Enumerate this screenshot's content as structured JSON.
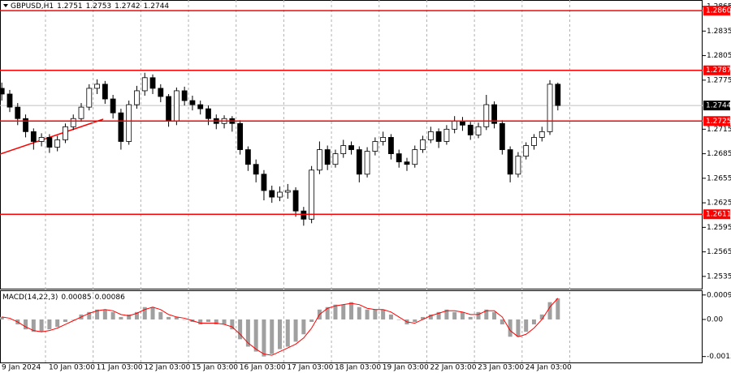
{
  "chart_data": [
    {
      "type": "candlestick",
      "symbol": "GBPUSD,H1",
      "quote": [
        1.2751,
        1.2753,
        1.2742,
        1.2744
      ],
      "categories": [
        "9 Jan 2024",
        null,
        null,
        null,
        null,
        null,
        "10 Jan 03:00",
        null,
        null,
        null,
        null,
        null,
        "11 Jan 03:00",
        null,
        null,
        null,
        null,
        null,
        "12 Jan 03:00",
        null,
        null,
        null,
        null,
        null,
        "15 Jan 03:00",
        null,
        null,
        null,
        null,
        null,
        "16 Jan 03:00",
        null,
        null,
        null,
        null,
        null,
        "17 Jan 03:00",
        null,
        null,
        null,
        null,
        null,
        "18 Jan 03:00",
        null,
        null,
        null,
        null,
        null,
        "19 Jan 03:00",
        null,
        null,
        null,
        null,
        null,
        "22 Jan 03:00",
        null,
        null,
        null,
        null,
        null,
        "23 Jan 03:00",
        null,
        null,
        null,
        null,
        null,
        "24 Jan 03:00",
        null,
        null,
        null,
        null
      ],
      "open": [
        1.2765,
        1.2758,
        1.2742,
        1.2728,
        1.2712,
        1.27,
        1.2705,
        1.2693,
        1.2702,
        1.2718,
        1.2728,
        1.2742,
        1.2765,
        1.277,
        1.2752,
        1.2735,
        1.27,
        1.2745,
        1.2762,
        1.2778,
        1.2765,
        1.2755,
        1.2725,
        1.2762,
        1.275,
        1.2745,
        1.274,
        1.2728,
        1.2722,
        1.2728,
        1.2722,
        1.269,
        1.2672,
        1.266,
        1.264,
        1.2632,
        1.2638,
        1.264,
        1.2615,
        1.2605,
        1.2665,
        1.269,
        1.2672,
        1.2685,
        1.2695,
        1.269,
        1.266,
        1.2688,
        1.27,
        1.2705,
        1.2685,
        1.2675,
        1.2672,
        1.269,
        1.2702,
        1.2712,
        1.27,
        1.2715,
        1.2725,
        1.272,
        1.2708,
        1.2718,
        1.2745,
        1.2722,
        1.269,
        1.266,
        1.2682,
        1.2695,
        1.2705,
        1.2712,
        1.277
      ],
      "high": [
        1.2772,
        1.2763,
        1.2747,
        1.2733,
        1.2716,
        1.271,
        1.2709,
        1.2707,
        1.2722,
        1.2733,
        1.2747,
        1.277,
        1.2776,
        1.2774,
        1.2757,
        1.274,
        1.275,
        1.2768,
        1.2784,
        1.2782,
        1.277,
        1.2758,
        1.2766,
        1.2767,
        1.2756,
        1.275,
        1.2744,
        1.2733,
        1.2732,
        1.2731,
        1.2726,
        1.2694,
        1.2678,
        1.2665,
        1.2646,
        1.2645,
        1.2648,
        1.2644,
        1.262,
        1.267,
        1.27,
        1.2695,
        1.269,
        1.2702,
        1.27,
        1.2694,
        1.2693,
        1.2705,
        1.2712,
        1.2709,
        1.269,
        1.268,
        1.2695,
        1.2707,
        1.2718,
        1.2716,
        1.272,
        1.2731,
        1.273,
        1.2724,
        1.2723,
        1.2757,
        1.2749,
        1.2726,
        1.2694,
        1.2687,
        1.2699,
        1.2709,
        1.2718,
        1.2775,
        1.2772
      ],
      "low": [
        1.275,
        1.2736,
        1.272,
        1.2705,
        1.269,
        1.2694,
        1.2686,
        1.2688,
        1.2698,
        1.2714,
        1.2724,
        1.2738,
        1.2758,
        1.2746,
        1.2728,
        1.269,
        1.2696,
        1.274,
        1.2756,
        1.2758,
        1.2748,
        1.2718,
        1.272,
        1.2744,
        1.2738,
        1.2733,
        1.272,
        1.2715,
        1.2716,
        1.2712,
        1.2684,
        1.2664,
        1.265,
        1.2628,
        1.2625,
        1.2627,
        1.263,
        1.2608,
        1.2597,
        1.26,
        1.266,
        1.2665,
        1.2668,
        1.268,
        1.2684,
        1.265,
        1.2656,
        1.2683,
        1.2695,
        1.2678,
        1.2668,
        1.2664,
        1.2668,
        1.2686,
        1.2698,
        1.2692,
        1.2696,
        1.271,
        1.2713,
        1.2702,
        1.2704,
        1.2714,
        1.2716,
        1.2684,
        1.265,
        1.2656,
        1.2678,
        1.269,
        1.27,
        1.2708,
        1.2738
      ],
      "close": [
        1.2758,
        1.2742,
        1.2728,
        1.2712,
        1.27,
        1.2705,
        1.2693,
        1.2702,
        1.2718,
        1.2728,
        1.2742,
        1.2765,
        1.277,
        1.2752,
        1.2735,
        1.27,
        1.2745,
        1.2762,
        1.2778,
        1.2765,
        1.2755,
        1.2725,
        1.2762,
        1.275,
        1.2745,
        1.274,
        1.2728,
        1.2722,
        1.2728,
        1.2722,
        1.269,
        1.2672,
        1.266,
        1.264,
        1.2632,
        1.2638,
        1.264,
        1.2615,
        1.2605,
        1.2665,
        1.269,
        1.2672,
        1.2685,
        1.2695,
        1.269,
        1.266,
        1.2688,
        1.27,
        1.2705,
        1.2685,
        1.2675,
        1.2672,
        1.269,
        1.2702,
        1.2712,
        1.27,
        1.2715,
        1.2725,
        1.272,
        1.2708,
        1.2718,
        1.2745,
        1.2722,
        1.269,
        1.266,
        1.2682,
        1.2695,
        1.2705,
        1.2712,
        1.277,
        1.2744
      ],
      "up_color": "#ffffff",
      "down_color": "#000000",
      "ylim": [
        1.252,
        1.2873
      ],
      "yticks": [
        1.2865,
        1.2835,
        1.2805,
        1.2775,
        1.2715,
        1.2685,
        1.2655,
        1.2625,
        1.2595,
        1.2565,
        1.2535
      ],
      "levels": [
        {
          "value": 1.286,
          "label": "1.2860"
        },
        1.2787,
        1.2725,
        1.2611
      ],
      "level_color": "#ff0000",
      "grid": true
    },
    {
      "type": "macd",
      "title": "MACD(14,22,3)",
      "series": [
        {
          "color": "#a0a0a0",
          "values": [
            0.0001,
            0,
            -0.0002,
            -0.0004,
            -0.0005,
            -0.0005,
            -0.0004,
            -0.0003,
            -0.0001,
            0,
            0.0002,
            0.0003,
            0.0004,
            0.0004,
            0.0003,
            0.0001,
            0.0002,
            0.0003,
            0.0005,
            0.0005,
            0.0003,
            0.0001,
            0.0001,
            0,
            -0.0001,
            -0.0002,
            -0.0001,
            -0.0002,
            -0.0002,
            -0.0004,
            -0.0008,
            -0.0011,
            -0.0013,
            -0.0015,
            -0.0014,
            -0.0012,
            -0.0011,
            -0.0009,
            -0.0006,
            -0.0001,
            0.0004,
            0.0005,
            0.0006,
            0.0006,
            0.0007,
            0.0005,
            0.0004,
            0.0004,
            0.0004,
            0.0002,
            0,
            -0.0002,
            -0.0001,
            0.0001,
            0.0002,
            0.0003,
            0.0004,
            0.0003,
            0.0003,
            0.0001,
            0.0003,
            0.0004,
            0.0003,
            -0.0002,
            -0.0007,
            -0.0007,
            -0.0005,
            -0.0002,
            0.0002,
            0.0007,
            0.00085
          ]
        },
        {
          "color": "#ff0000",
          "values": [
            0.0001,
            5e-05,
            -0.0001,
            -0.0003,
            -0.00045,
            -0.0005,
            -0.00045,
            -0.00035,
            -0.0002,
            -5e-05,
            0.0001,
            0.00025,
            0.00035,
            0.0004,
            0.00035,
            0.0002,
            0.00015,
            0.00025,
            0.0004,
            0.0005,
            0.0004,
            0.0002,
            0.0001,
            5e-05,
            -5e-05,
            -0.00015,
            -0.00015,
            -0.00015,
            -0.0002,
            -0.0003,
            -0.0006,
            -0.00095,
            -0.0012,
            -0.0014,
            -0.00145,
            -0.0013,
            -0.00115,
            -0.001,
            -0.00075,
            -0.00035,
            0.0002,
            0.00045,
            0.00055,
            0.0006,
            0.00065,
            0.0006,
            0.00045,
            0.0004,
            0.0004,
            0.0003,
            0.0001,
            -0.0001,
            -0.00015,
            0,
            0.00015,
            0.00025,
            0.00035,
            0.00035,
            0.0003,
            0.0002,
            0.0002,
            0.00035,
            0.00035,
            0.0001,
            -0.00045,
            -0.0007,
            -0.0006,
            -0.00035,
            0,
            0.0005,
            0.00086
          ]
        }
      ],
      "ylim": [
        -0.00174,
        0.00118
      ],
      "yticks": [
        0.00099,
        {
          "value": 0,
          "label": "0.00"
        },
        -0.0015
      ]
    }
  ]
}
